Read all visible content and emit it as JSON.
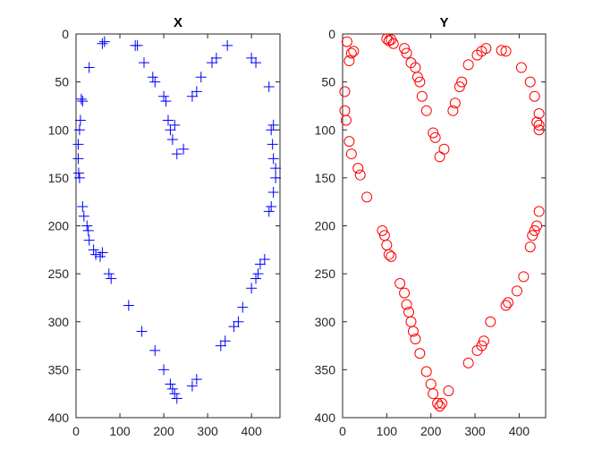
{
  "chart_data": [
    {
      "type": "scatter",
      "title": "X",
      "marker": "plus",
      "color": "#0000ff",
      "y_reversed": true,
      "xlim": [
        0,
        465
      ],
      "ylim": [
        0,
        400
      ],
      "xticks": [
        0,
        100,
        200,
        300,
        400
      ],
      "yticks": [
        0,
        50,
        100,
        150,
        200,
        250,
        300,
        350,
        400
      ],
      "x": [
        60,
        65,
        135,
        140,
        155,
        30,
        175,
        180,
        200,
        205,
        15,
        12,
        10,
        8,
        5,
        5,
        6,
        8,
        15,
        18,
        25,
        28,
        30,
        40,
        45,
        55,
        60,
        75,
        80,
        120,
        150,
        180,
        200,
        215,
        220,
        225,
        230,
        265,
        275,
        330,
        340,
        360,
        370,
        380,
        400,
        410,
        415,
        420,
        430,
        440,
        445,
        450,
        455,
        455,
        450,
        448,
        445,
        450,
        440,
        410,
        400,
        345,
        320,
        310,
        285,
        275,
        265,
        245,
        230,
        220,
        215,
        210,
        225
      ],
      "y": [
        10,
        8,
        12,
        12,
        30,
        35,
        45,
        50,
        65,
        70,
        70,
        68,
        90,
        100,
        115,
        130,
        145,
        150,
        180,
        190,
        200,
        205,
        215,
        225,
        230,
        232,
        228,
        250,
        255,
        283,
        310,
        330,
        350,
        365,
        370,
        375,
        380,
        367,
        360,
        325,
        320,
        305,
        300,
        285,
        265,
        255,
        250,
        240,
        235,
        185,
        180,
        165,
        150,
        140,
        130,
        115,
        100,
        95,
        55,
        30,
        25,
        12,
        25,
        30,
        45,
        60,
        65,
        120,
        125,
        110,
        100,
        90,
        95
      ]
    },
    {
      "type": "scatter",
      "title": "Y",
      "marker": "circle",
      "color": "#ff0000",
      "y_reversed": true,
      "xlim": [
        0,
        460
      ],
      "ylim": [
        0,
        400
      ],
      "xticks": [
        0,
        100,
        200,
        300,
        400
      ],
      "yticks": [
        0,
        50,
        100,
        150,
        200,
        250,
        300,
        350,
        400
      ],
      "x": [
        10,
        20,
        25,
        15,
        5,
        5,
        8,
        15,
        20,
        35,
        40,
        55,
        90,
        95,
        100,
        105,
        110,
        130,
        140,
        145,
        150,
        155,
        160,
        165,
        175,
        190,
        200,
        205,
        215,
        220,
        225,
        240,
        285,
        305,
        315,
        320,
        335,
        370,
        375,
        395,
        410,
        425,
        430,
        435,
        440,
        445,
        445,
        445,
        440,
        445,
        435,
        425,
        405,
        370,
        360,
        325,
        315,
        305,
        285,
        270,
        265,
        255,
        250,
        230,
        220,
        210,
        205,
        190,
        180,
        175,
        170,
        165,
        155,
        145,
        140,
        115,
        100,
        105,
        110
      ],
      "y": [
        8,
        20,
        18,
        28,
        60,
        80,
        90,
        112,
        125,
        140,
        147,
        170,
        205,
        210,
        220,
        230,
        232,
        260,
        270,
        282,
        290,
        300,
        310,
        318,
        333,
        352,
        365,
        375,
        385,
        388,
        385,
        372,
        343,
        330,
        325,
        320,
        300,
        283,
        280,
        268,
        253,
        222,
        210,
        205,
        200,
        185,
        100,
        95,
        92,
        83,
        65,
        50,
        35,
        18,
        17,
        15,
        18,
        22,
        32,
        50,
        55,
        72,
        80,
        120,
        128,
        108,
        103,
        80,
        65,
        50,
        45,
        35,
        30,
        20,
        15,
        10,
        5,
        7,
        6
      ]
    }
  ]
}
